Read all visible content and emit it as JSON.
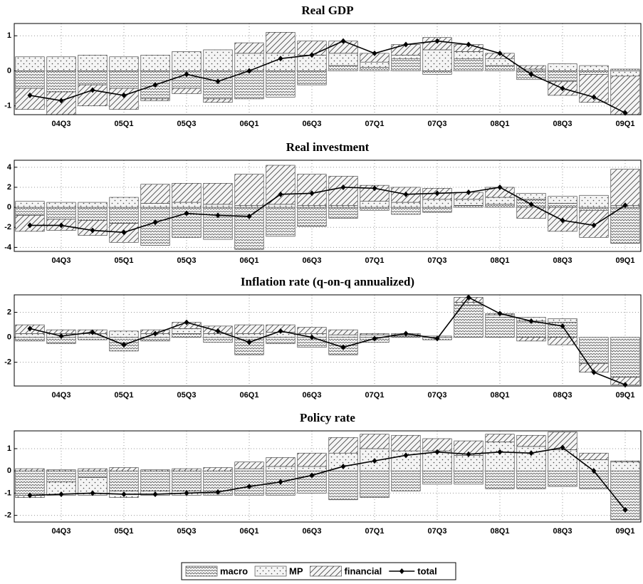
{
  "chart_data": [
    {
      "type": "bar",
      "title": "Real GDP",
      "grid": true,
      "legend": "bottom",
      "categories": [
        null,
        "04Q3",
        null,
        "05Q1",
        null,
        "05Q3",
        null,
        "06Q1",
        null,
        "06Q3",
        null,
        "07Q1",
        null,
        "07Q3",
        null,
        "08Q1",
        null,
        "08Q3",
        null,
        "09Q1"
      ],
      "ylim": [
        -1.25,
        1.35
      ],
      "yticks": [
        -1,
        0,
        1
      ],
      "series": [
        {
          "name": "macro",
          "color": "#444444",
          "pattern": "wave",
          "values": [
            -0.5,
            -0.6,
            -0.4,
            -0.5,
            -0.8,
            -0.5,
            -0.8,
            -0.8,
            -0.75,
            -0.4,
            0.15,
            0.1,
            0.35,
            -0.1,
            0.35,
            0.15,
            -0.25,
            -0.3,
            -0.1,
            0.05
          ]
        },
        {
          "name": "MP",
          "color": "#444444",
          "pattern": "dots",
          "values": [
            0.4,
            0.4,
            0.45,
            0.4,
            0.45,
            0.55,
            0.6,
            0.5,
            0.5,
            0.45,
            0.35,
            0.15,
            0.1,
            0.6,
            0.2,
            0.2,
            0.05,
            0.2,
            0.15,
            -0.15
          ]
        },
        {
          "name": "financial",
          "color": "#444444",
          "pattern": "hatch",
          "values": [
            -0.6,
            -0.65,
            -0.6,
            -0.6,
            -0.05,
            -0.15,
            -0.1,
            0.3,
            0.6,
            0.4,
            0.35,
            0.25,
            0.3,
            0.35,
            0.2,
            0.15,
            0.1,
            -0.4,
            -0.8,
            -1.1
          ]
        },
        {
          "name": "total",
          "color": "#000000",
          "type": "line",
          "values": [
            -0.7,
            -0.85,
            -0.55,
            -0.7,
            -0.4,
            -0.1,
            -0.3,
            0.0,
            0.35,
            0.45,
            0.85,
            0.5,
            0.75,
            0.85,
            0.75,
            0.5,
            -0.1,
            -0.5,
            -0.75,
            -1.2
          ]
        }
      ]
    },
    {
      "type": "bar",
      "title": "Real investment",
      "grid": true,
      "categories": [
        null,
        "04Q3",
        null,
        "05Q1",
        null,
        "05Q3",
        null,
        "06Q1",
        null,
        "06Q3",
        null,
        "07Q1",
        null,
        "07Q3",
        null,
        "08Q1",
        null,
        "08Q3",
        null,
        "09Q1"
      ],
      "ylim": [
        -4.4,
        4.7
      ],
      "yticks": [
        -4,
        -2,
        0,
        2,
        4
      ],
      "series": [
        {
          "name": "macro",
          "color": "#444444",
          "pattern": "wave",
          "values": [
            -0.8,
            -1.2,
            -1.3,
            -1.6,
            -3.8,
            -3.0,
            -3.2,
            -4.2,
            -2.9,
            -1.9,
            -1.1,
            -0.3,
            -0.7,
            -0.5,
            0.2,
            0.3,
            0.8,
            0.4,
            -0.3,
            -3.6
          ]
        },
        {
          "name": "MP",
          "color": "#444444",
          "pattern": "dots",
          "values": [
            0.6,
            0.5,
            0.5,
            1.0,
            0.4,
            0.5,
            0.3,
            0.2,
            0.3,
            0.2,
            0.2,
            0.6,
            0.5,
            0.8,
            0.6,
            0.7,
            0.6,
            0.7,
            1.2,
            0.2
          ]
        },
        {
          "name": "financial",
          "color": "#444444",
          "pattern": "hatch",
          "values": [
            -1.6,
            -1.1,
            -1.5,
            -1.9,
            1.9,
            1.9,
            2.1,
            3.1,
            3.9,
            3.1,
            2.9,
            1.6,
            1.5,
            1.1,
            0.7,
            1.0,
            -1.1,
            -2.4,
            -2.7,
            3.6
          ]
        },
        {
          "name": "total",
          "color": "#000000",
          "type": "line",
          "values": [
            -1.8,
            -1.8,
            -2.3,
            -2.5,
            -1.5,
            -0.6,
            -0.8,
            -0.9,
            1.3,
            1.4,
            2.0,
            1.9,
            1.3,
            1.4,
            1.5,
            2.0,
            0.3,
            -1.3,
            -1.8,
            0.2
          ]
        }
      ]
    },
    {
      "type": "bar",
      "title": "Inflation rate (q-on-q annualized)",
      "grid": true,
      "categories": [
        null,
        "04Q3",
        null,
        "05Q1",
        null,
        "05Q3",
        null,
        "06Q1",
        null,
        "06Q3",
        null,
        "07Q1",
        null,
        "07Q3",
        null,
        "08Q1",
        null,
        "08Q3",
        null,
        "09Q1"
      ],
      "ylim": [
        -3.9,
        3.4
      ],
      "yticks": [
        -2,
        0,
        2
      ],
      "series": [
        {
          "name": "macro",
          "color": "#444444",
          "pattern": "wave",
          "values": [
            -0.3,
            -0.5,
            -0.2,
            -1.1,
            -0.3,
            0.3,
            -0.4,
            -1.4,
            -0.5,
            -0.8,
            -1.4,
            -0.4,
            0.1,
            -0.2,
            2.6,
            1.6,
            1.3,
            1.2,
            -2.1,
            -3.2
          ]
        },
        {
          "name": "MP",
          "color": "#444444",
          "pattern": "dots",
          "values": [
            0.3,
            0.3,
            0.3,
            0.5,
            0.3,
            0.4,
            0.3,
            0.3,
            0.4,
            0.3,
            0.2,
            0.2,
            0.1,
            0.1,
            0.2,
            0.2,
            0.3,
            0.3,
            0.0,
            0.0
          ]
        },
        {
          "name": "financial",
          "color": "#444444",
          "pattern": "hatch",
          "values": [
            0.7,
            0.3,
            0.3,
            0.0,
            0.3,
            0.5,
            0.6,
            0.7,
            0.6,
            0.5,
            0.4,
            0.1,
            0.1,
            0.0,
            0.4,
            0.1,
            -0.3,
            -0.6,
            -0.7,
            -0.6
          ]
        },
        {
          "name": "total",
          "color": "#000000",
          "type": "line",
          "values": [
            0.7,
            0.1,
            0.4,
            -0.6,
            0.3,
            1.2,
            0.5,
            -0.4,
            0.5,
            0.0,
            -0.8,
            -0.1,
            0.3,
            -0.1,
            3.2,
            1.9,
            1.3,
            0.9,
            -2.8,
            -3.8
          ]
        }
      ]
    },
    {
      "type": "bar",
      "title": "Policy rate",
      "grid": true,
      "categories": [
        null,
        "04Q3",
        null,
        "05Q1",
        null,
        "05Q3",
        null,
        "06Q1",
        null,
        "06Q3",
        null,
        "07Q1",
        null,
        "07Q3",
        null,
        "08Q1",
        null,
        "08Q3",
        null,
        "09Q1"
      ],
      "ylim": [
        -2.3,
        1.8
      ],
      "yticks": [
        -2,
        -1,
        0,
        1
      ],
      "series": [
        {
          "name": "macro",
          "color": "#444444",
          "pattern": "wave",
          "values": [
            -1.1,
            -0.5,
            -0.3,
            -0.9,
            -0.9,
            -0.9,
            -1.1,
            -1.1,
            -1.1,
            -1.0,
            -1.3,
            -1.2,
            -0.9,
            -0.6,
            -0.6,
            -0.8,
            -0.8,
            -0.7,
            -0.8,
            -2.2
          ]
        },
        {
          "name": "MP",
          "color": "#444444",
          "pattern": "dots",
          "values": [
            -0.1,
            -0.6,
            -0.8,
            -0.3,
            -0.2,
            -0.2,
            0.0,
            0.1,
            0.2,
            0.2,
            0.8,
            1.0,
            0.9,
            0.9,
            0.7,
            1.3,
            1.1,
            0.95,
            0.5,
            0.4
          ]
        },
        {
          "name": "financial",
          "color": "#444444",
          "pattern": "hatch",
          "values": [
            0.1,
            0.05,
            0.1,
            0.15,
            0.05,
            0.1,
            0.15,
            0.3,
            0.4,
            0.6,
            0.7,
            0.65,
            0.7,
            0.55,
            0.65,
            0.35,
            0.5,
            0.8,
            0.3,
            0.05
          ]
        },
        {
          "name": "total",
          "color": "#000000",
          "type": "line",
          "values": [
            -1.1,
            -1.05,
            -1.0,
            -1.05,
            -1.05,
            -1.0,
            -0.95,
            -0.7,
            -0.5,
            -0.2,
            0.2,
            0.45,
            0.7,
            0.85,
            0.75,
            0.85,
            0.8,
            1.05,
            0.0,
            -1.75
          ]
        }
      ]
    }
  ]
}
